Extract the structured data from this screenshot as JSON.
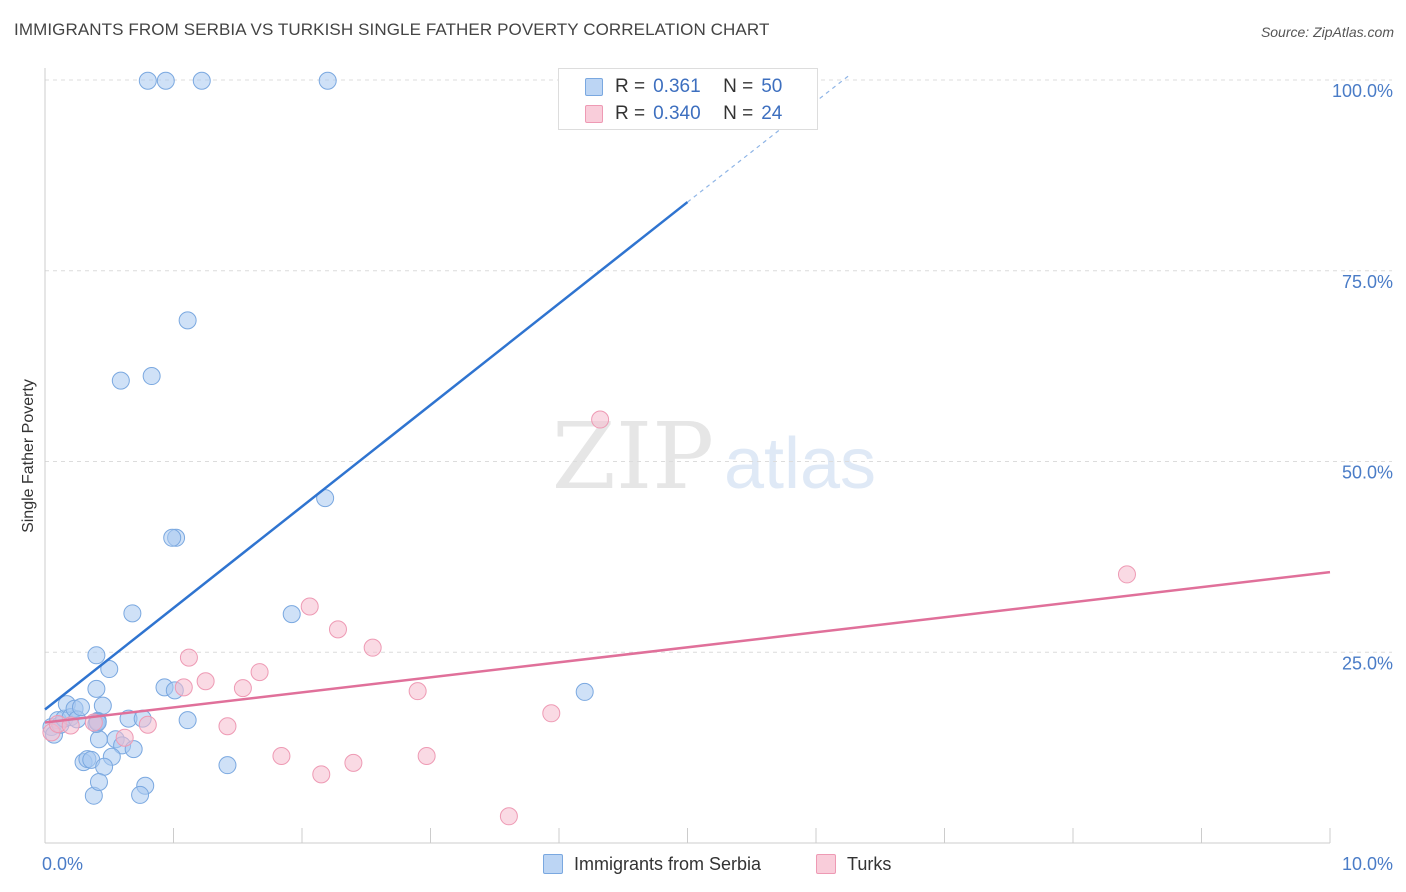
{
  "title": "IMMIGRANTS FROM SERBIA VS TURKISH SINGLE FATHER POVERTY CORRELATION CHART",
  "source": "Source: ZipAtlas.com",
  "watermark": {
    "zip": "ZIP",
    "atlas": "atlas"
  },
  "colors": {
    "blue_fill": "#a8c8f0",
    "blue_stroke": "#7aa8e0",
    "blue_line": "#2f74d0",
    "pink_fill": "#f6bccd",
    "pink_stroke": "#ee9ab4",
    "pink_line": "#e0709a",
    "grid": "#dcdcdc",
    "tick_text": "#4a7cc7"
  },
  "legend": {
    "rows": [
      {
        "r_label": "R =",
        "r_value": "0.361",
        "n_label": "N =",
        "n_value": "50"
      },
      {
        "r_label": "R =",
        "r_value": "0.340",
        "n_label": "N =",
        "n_value": "24"
      }
    ]
  },
  "bottom_legend": {
    "serbia": "Immigrants from Serbia",
    "turks": "Turks"
  },
  "chart_data": {
    "type": "scatter",
    "title": "IMMIGRANTS FROM SERBIA VS TURKISH SINGLE FATHER POVERTY CORRELATION CHART",
    "xlabel": "",
    "ylabel": "Single Father Poverty",
    "xlim": [
      0,
      10
    ],
    "ylim": [
      0,
      105
    ],
    "x_ticks": [
      "0.0%",
      "10.0%"
    ],
    "y_ticks": [
      {
        "value": 100,
        "label": "100.0%"
      },
      {
        "value": 75,
        "label": "75.0%"
      },
      {
        "value": 50,
        "label": "50.0%"
      },
      {
        "value": 25,
        "label": "25.0%"
      }
    ],
    "grid": true,
    "legend_position": "top-center",
    "series": [
      {
        "name": "Immigrants from Serbia",
        "color": "#a8c8f0",
        "r": 0.361,
        "n": 50,
        "trend": {
          "x0": 0.0,
          "y0": 17.5,
          "x1": 5.0,
          "y1": 84.0,
          "dash_to_x": 6.25,
          "dash_to_y": 100.5
        },
        "points": [
          [
            0.05,
            15.2
          ],
          [
            0.07,
            14.2
          ],
          [
            0.1,
            16.1
          ],
          [
            0.12,
            15.5
          ],
          [
            0.15,
            16.3
          ],
          [
            0.17,
            18.2
          ],
          [
            0.2,
            16.5
          ],
          [
            0.23,
            17.6
          ],
          [
            0.25,
            16.2
          ],
          [
            0.28,
            17.8
          ],
          [
            0.3,
            10.6
          ],
          [
            0.33,
            11.0
          ],
          [
            0.36,
            10.9
          ],
          [
            0.38,
            6.2
          ],
          [
            0.4,
            20.2
          ],
          [
            0.42,
            13.6
          ],
          [
            0.45,
            18.0
          ],
          [
            0.41,
            16.0
          ],
          [
            0.4,
            15.6
          ],
          [
            0.41,
            15.9
          ],
          [
            0.41,
            15.8
          ],
          [
            0.4,
            13.8
          ],
          [
            0.42,
            14.0
          ],
          [
            0.41,
            16.1
          ],
          [
            0.4,
            16.2
          ],
          [
            0.41,
            16.0
          ],
          [
            0.42,
            15.9
          ],
          [
            0.41,
            16.1
          ],
          [
            0.4,
            16.0
          ],
          [
            0.41,
            16.0
          ],
          [
            0.41,
            15.8
          ],
          [
            0.42,
            16.1
          ],
          [
            0.4,
            15.9
          ],
          [
            0.41,
            16.1
          ],
          [
            0.4,
            16.0
          ],
          [
            0.41,
            15.8
          ],
          [
            0.42,
            16.2
          ],
          [
            0.4,
            15.9
          ],
          [
            0.41,
            16.1
          ],
          [
            0.4,
            16.0
          ],
          [
            0.41,
            15.8
          ],
          [
            0.42,
            16.2
          ],
          [
            0.4,
            15.9
          ],
          [
            0.41,
            16.1
          ],
          [
            0.4,
            16.0
          ],
          [
            0.41,
            15.8
          ],
          [
            0.42,
            16.2
          ],
          [
            0.4,
            15.9
          ],
          [
            0.41,
            16.1
          ],
          [
            0.4,
            16.0
          ]
        ]
      },
      {
        "name": "Turks",
        "color": "#f6bccd",
        "r": 0.34,
        "n": 24,
        "trend": {
          "x0": 0.0,
          "y0": 15.8,
          "x1": 10.0,
          "y1": 35.5
        },
        "points": [
          [
            0.05,
            14.5
          ],
          [
            0.1,
            15.6
          ],
          [
            0.2,
            15.4
          ],
          [
            0.38,
            15.8
          ],
          [
            0.62,
            13.8
          ],
          [
            0.8,
            15.5
          ],
          [
            1.08,
            20.4
          ],
          [
            1.12,
            24.3
          ],
          [
            1.25,
            21.2
          ],
          [
            1.42,
            15.3
          ],
          [
            1.54,
            20.3
          ],
          [
            1.67,
            22.4
          ],
          [
            1.84,
            11.4
          ],
          [
            2.06,
            31.0
          ],
          [
            2.15,
            9.0
          ],
          [
            2.28,
            28.0
          ],
          [
            2.4,
            10.5
          ],
          [
            2.55,
            25.6
          ],
          [
            2.9,
            19.9
          ],
          [
            2.97,
            11.4
          ],
          [
            3.61,
            3.5
          ],
          [
            3.94,
            17.0
          ],
          [
            4.32,
            55.5
          ],
          [
            8.42,
            35.2
          ]
        ]
      }
    ]
  }
}
